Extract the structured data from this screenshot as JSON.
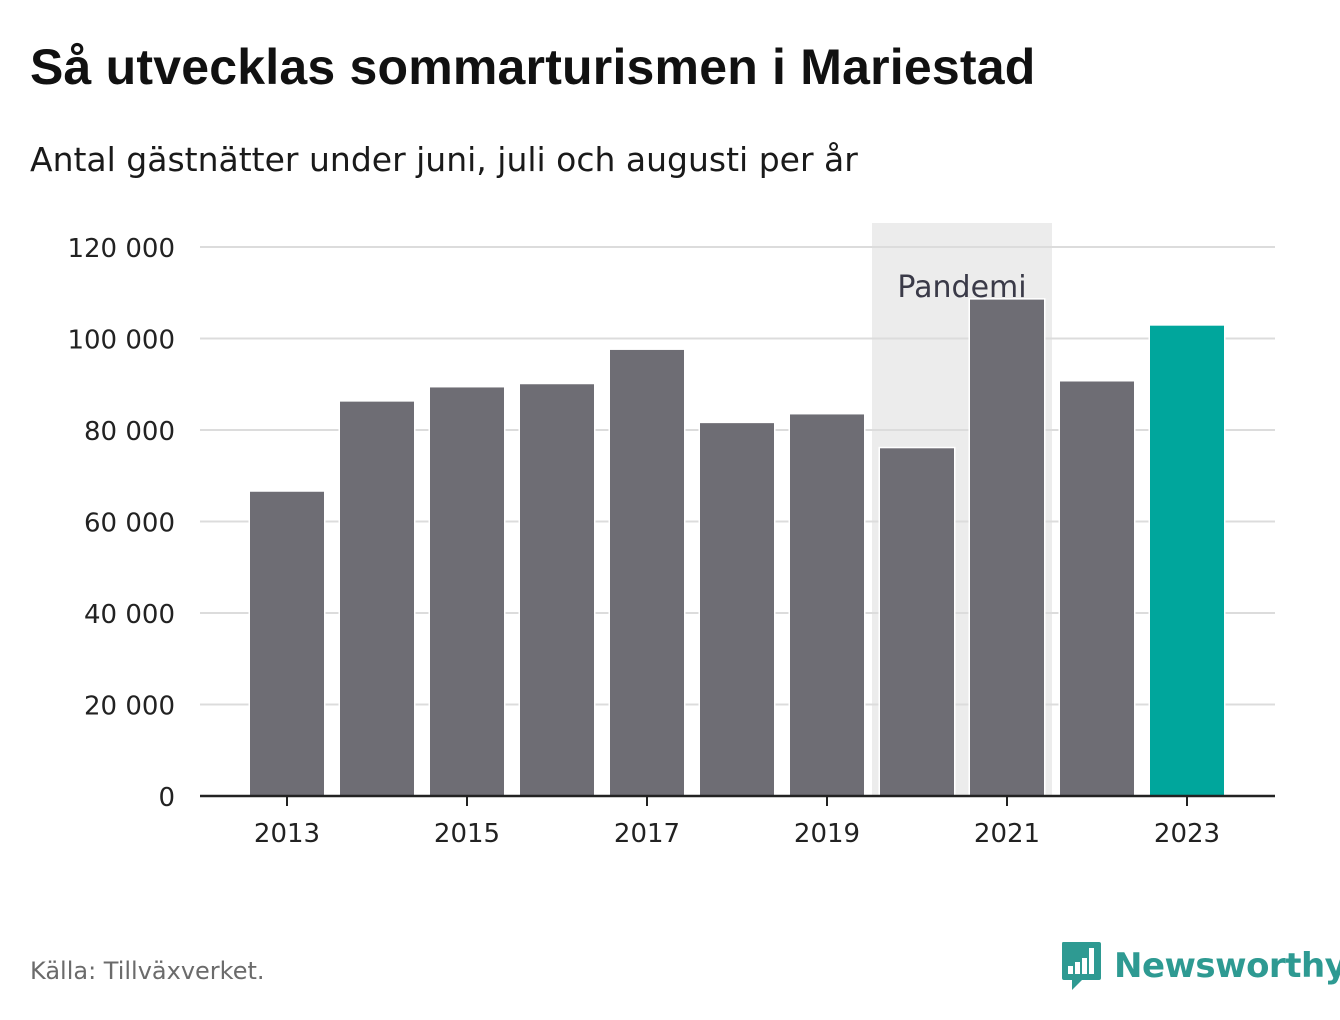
{
  "title": "Så utvecklas sommarturismen i Mariestad",
  "subtitle": "Antal gästnätter under juni, juli och augusti per år",
  "source": "Källa: Tillväxverket.",
  "brand": {
    "name": "Newsworthy",
    "icon": "newsworthy-logo-icon",
    "color": "#2e9a92"
  },
  "colors": {
    "bar": "#6e6d74",
    "highlight": "#00a69c",
    "pandemic_band": "#ececec",
    "grid": "#dcdcdc"
  },
  "chart_data": {
    "type": "bar",
    "title": "Så utvecklas sommarturismen i Mariestad",
    "subtitle": "Antal gästnätter under juni, juli och augusti per år",
    "xlabel": "",
    "ylabel": "",
    "categories": [
      2013,
      2014,
      2015,
      2016,
      2017,
      2018,
      2019,
      2020,
      2021,
      2022,
      2023
    ],
    "values": [
      66500,
      86200,
      89300,
      90000,
      97500,
      81500,
      83400,
      76000,
      108500,
      90600,
      102800
    ],
    "highlight_category": 2023,
    "ylim": [
      0,
      120000
    ],
    "y_ticks": [
      0,
      20000,
      40000,
      60000,
      80000,
      100000,
      120000
    ],
    "y_tick_labels": [
      "0",
      "20 000",
      "40 000",
      "60 000",
      "80 000",
      "100 000",
      "120 000"
    ],
    "x_tick_labels": [
      "2013",
      "2015",
      "2017",
      "2019",
      "2021",
      "2023"
    ],
    "grid": true,
    "annotations": [
      {
        "type": "band",
        "label": "Pandemi",
        "from": 2020,
        "to": 2021
      }
    ]
  }
}
